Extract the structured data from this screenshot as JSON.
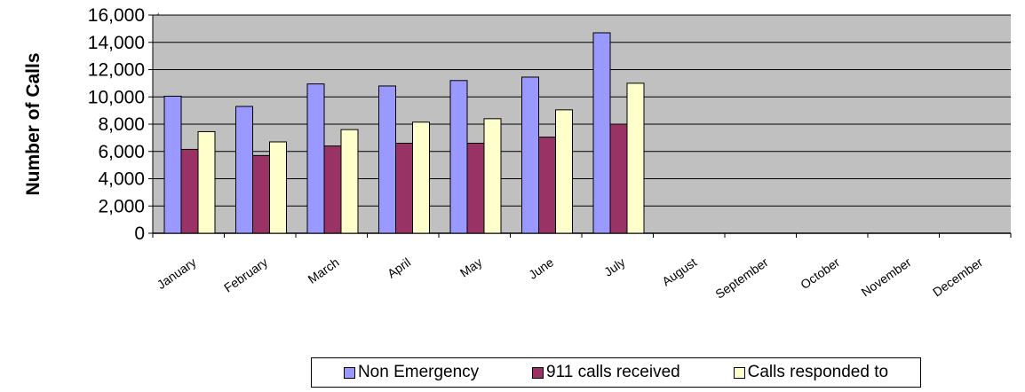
{
  "chart_data": {
    "type": "bar",
    "categories": [
      "January",
      "February",
      "March",
      "April",
      "May",
      "June",
      "July",
      "August",
      "September",
      "October",
      "November",
      "December"
    ],
    "series": [
      {
        "name": "Non Emergency",
        "color": "#9999ff",
        "values": [
          10050,
          9300,
          10950,
          10800,
          11200,
          11450,
          14700,
          null,
          null,
          null,
          null,
          null
        ]
      },
      {
        "name": "911 calls received",
        "color": "#993366",
        "values": [
          6150,
          5700,
          6400,
          6600,
          6600,
          7050,
          8000,
          null,
          null,
          null,
          null,
          null
        ]
      },
      {
        "name": "Calls responded to",
        "color": "#ffffcc",
        "values": [
          7450,
          6700,
          7600,
          8150,
          8400,
          9050,
          11000,
          null,
          null,
          null,
          null,
          null
        ]
      }
    ],
    "title": "",
    "xlabel": "",
    "ylabel": "Number of Calls",
    "ylim": [
      0,
      16000
    ],
    "yticks": [
      0,
      2000,
      4000,
      6000,
      8000,
      10000,
      12000,
      14000,
      16000
    ],
    "ytick_labels": [
      "0",
      "2,000",
      "4,000",
      "6,000",
      "8,000",
      "10,000",
      "12,000",
      "14,000",
      "16,000"
    ],
    "plot_background": "#c0c0c0",
    "grid": true,
    "legend": "bottom"
  }
}
